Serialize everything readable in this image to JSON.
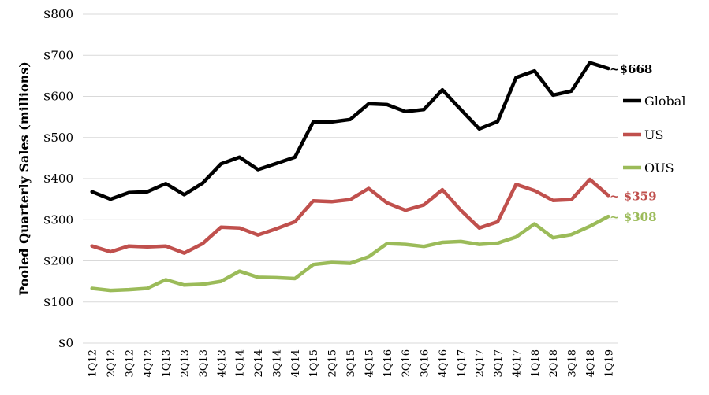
{
  "chart_data": {
    "type": "line",
    "ylabel": "Pooled Quarterly Sales (millions)",
    "xlabel": "",
    "title": "",
    "ylim": [
      0,
      800
    ],
    "yticks": [
      "$0",
      "$100",
      "$200",
      "$300",
      "$400",
      "$500",
      "$600",
      "$700",
      "$800"
    ],
    "categories": [
      "1Q12",
      "2Q12",
      "3Q12",
      "4Q12",
      "1Q13",
      "2Q13",
      "3Q13",
      "4Q13",
      "1Q14",
      "2Q14",
      "3Q14",
      "4Q14",
      "1Q15",
      "2Q15",
      "3Q15",
      "4Q15",
      "1Q16",
      "2Q16",
      "3Q16",
      "4Q16",
      "1Q17",
      "2Q17",
      "3Q17",
      "4Q17",
      "1Q18",
      "2Q18",
      "3Q18",
      "4Q18",
      "1Q19"
    ],
    "grid": "horizontal",
    "legend_position": "right",
    "series": [
      {
        "name": "Global",
        "color": "#000000",
        "values": [
          368,
          350,
          366,
          368,
          388,
          361,
          389,
          436,
          452,
          422,
          437,
          452,
          538,
          538,
          544,
          582,
          580,
          563,
          568,
          616,
          568,
          521,
          539,
          646,
          662,
          603,
          613,
          682,
          668
        ],
        "annotation": "~$668",
        "annotation_color": "#000000"
      },
      {
        "name": "US",
        "color": "#c0504d",
        "values": [
          236,
          222,
          236,
          234,
          236,
          219,
          242,
          282,
          280,
          263,
          278,
          295,
          346,
          344,
          349,
          376,
          341,
          323,
          336,
          373,
          323,
          280,
          295,
          386,
          371,
          347,
          349,
          398,
          359
        ],
        "annotation": "~ $359",
        "annotation_color": "#c0504d"
      },
      {
        "name": "OUS",
        "color": "#9bbb59",
        "values": [
          133,
          128,
          130,
          133,
          154,
          141,
          143,
          150,
          175,
          160,
          159,
          157,
          191,
          196,
          194,
          210,
          242,
          240,
          235,
          245,
          247,
          240,
          243,
          258,
          290,
          256,
          264,
          284,
          308
        ],
        "annotation": "~ $308",
        "annotation_color": "#9bbb59"
      }
    ]
  }
}
